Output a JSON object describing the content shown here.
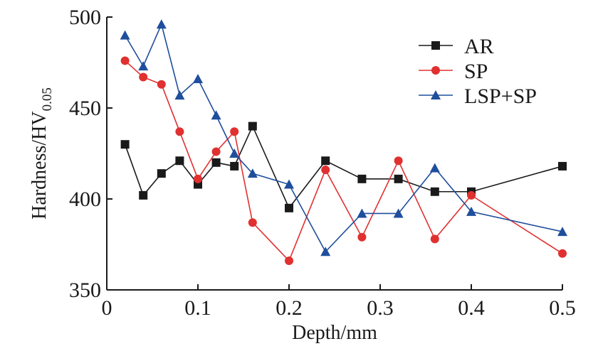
{
  "chart_data": {
    "type": "line",
    "xlabel": "Depth/mm",
    "ylabel": "Hardness/HV",
    "ylabel_sub": "0.05",
    "xlim": [
      0,
      0.5
    ],
    "ylim": [
      350,
      500
    ],
    "xticks": [
      0,
      0.1,
      0.2,
      0.3,
      0.4,
      0.5
    ],
    "xtick_labels": [
      "0",
      "0.1",
      "0.2",
      "0.3",
      "0.4",
      "0.5"
    ],
    "yticks": [
      350,
      400,
      450,
      500
    ],
    "ytick_labels": [
      "350",
      "400",
      "450",
      "500"
    ],
    "grid": false,
    "legend_position": "top-right",
    "series": [
      {
        "name": "AR",
        "color": "#1a1a1a",
        "marker": "square",
        "x": [
          0.02,
          0.04,
          0.06,
          0.08,
          0.1,
          0.12,
          0.14,
          0.16,
          0.2,
          0.24,
          0.28,
          0.32,
          0.36,
          0.4,
          0.5
        ],
        "y": [
          430,
          402,
          414,
          421,
          408,
          420,
          418,
          440,
          395,
          421,
          411,
          411,
          404,
          404,
          418
        ]
      },
      {
        "name": "SP",
        "color": "#e03030",
        "marker": "circle",
        "x": [
          0.02,
          0.04,
          0.06,
          0.08,
          0.1,
          0.12,
          0.14,
          0.16,
          0.2,
          0.24,
          0.28,
          0.32,
          0.36,
          0.4,
          0.5
        ],
        "y": [
          476,
          467,
          463,
          437,
          411,
          426,
          437,
          387,
          366,
          416,
          379,
          421,
          378,
          402,
          370
        ]
      },
      {
        "name": "LSP+SP",
        "color": "#1f4e9c",
        "marker": "triangle",
        "x": [
          0.02,
          0.04,
          0.06,
          0.08,
          0.1,
          0.12,
          0.14,
          0.16,
          0.2,
          0.24,
          0.28,
          0.32,
          0.36,
          0.4,
          0.5
        ],
        "y": [
          490,
          473,
          496,
          457,
          466,
          446,
          425,
          414,
          408,
          371,
          392,
          392,
          417,
          393,
          382
        ]
      }
    ]
  }
}
